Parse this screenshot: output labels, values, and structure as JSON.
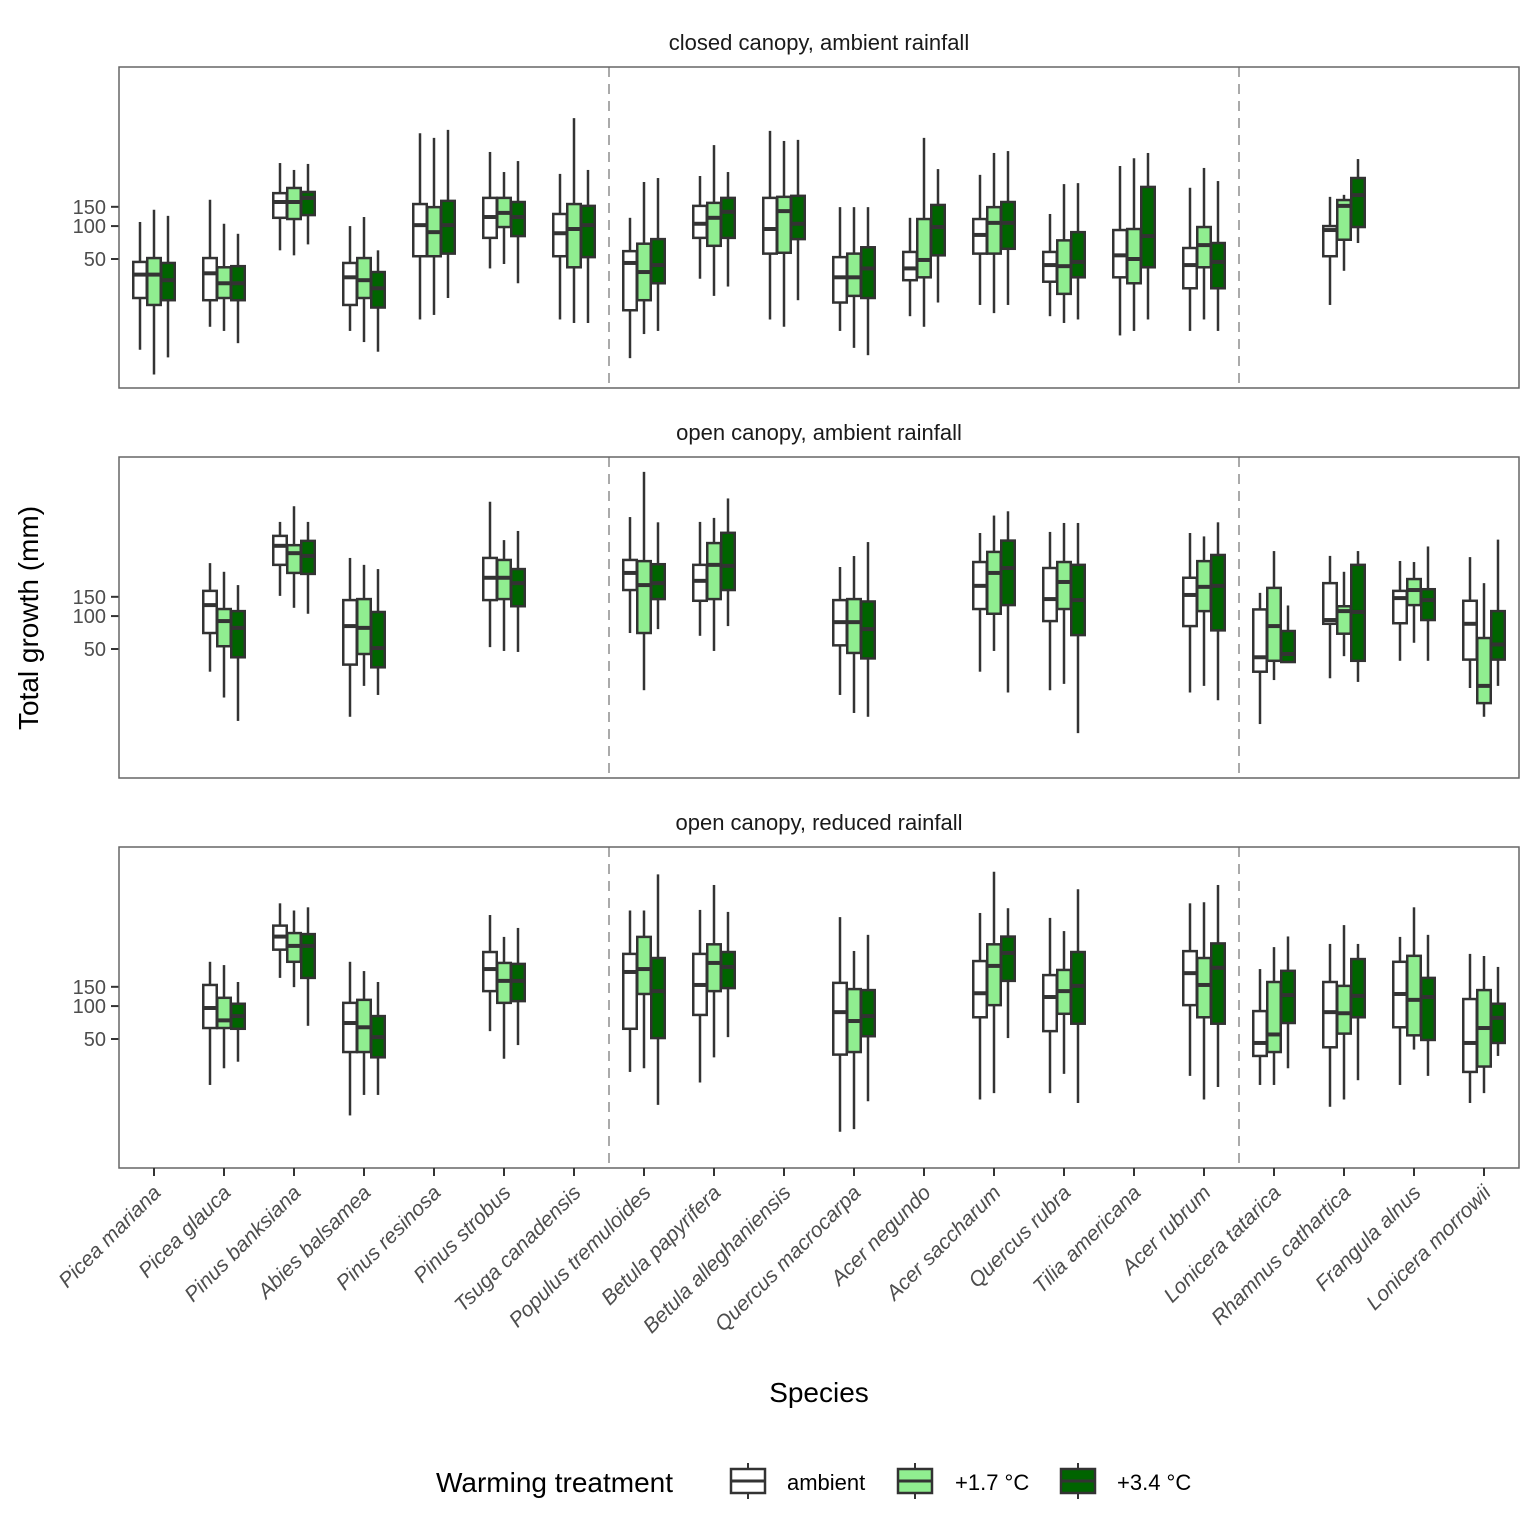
{
  "chart_data": {
    "type": "boxplot",
    "ylabel": "Total growth (mm)",
    "xlabel": "Species",
    "y_scale": "log",
    "ylim": [
      3.3,
      2850
    ],
    "y_ticks": [
      50,
      100,
      150
    ],
    "y_tick_labels": [
      "50",
      "100",
      "150"
    ],
    "group_separators_after": [
      "Tsuga canadensis",
      "Acer rubrum"
    ],
    "categories": [
      "Picea mariana",
      "Picea glauca",
      "Pinus banksiana",
      "Abies balsamea",
      "Pinus resinosa",
      "Pinus strobus",
      "Tsuga canadensis",
      "Populus tremuloides",
      "Betula papyrifera",
      "Betula alleghaniensis",
      "Quercus macrocarpa",
      "Acer negundo",
      "Acer saccharum",
      "Quercus rubra",
      "Tilia americana",
      "Acer rubrum",
      "Lonicera tatarica",
      "Rhamnus cathartica",
      "Frangula alnus",
      "Lonicera morrowii"
    ],
    "legend": {
      "title": "Warming treatment",
      "position": "bottom",
      "entries": [
        {
          "name": "ambient",
          "color": "#ffffff"
        },
        {
          "name": "+1.7 °C",
          "color": "#90ee90"
        },
        {
          "name": "+3.4 °C",
          "color": "#006400"
        }
      ]
    },
    "box_stat_order": [
      "whisker_low",
      "q1",
      "median",
      "q3",
      "whisker_high"
    ],
    "panels": [
      {
        "title": "closed canopy, ambient rainfall",
        "boxes": {
          "Picea mariana": [
            [
              7.4,
              22,
              36,
              47,
              109
            ],
            [
              4.4,
              19,
              36,
              51,
              141
            ],
            [
              6.3,
              21,
              32,
              46,
              124
            ]
          ],
          "Picea glauca": [
            [
              12,
              21,
              37,
              51,
              174
            ],
            [
              11,
              22,
              30,
              42,
              105
            ],
            [
              8.5,
              21,
              30,
              43,
              85
            ]
          ],
          "Pinus banksiana": [
            [
              60,
              119,
              166,
              200,
              377
            ],
            [
              54,
              116,
              166,
              223,
              326
            ],
            [
              68,
              126,
              181,
              205,
              370
            ]
          ],
          "Abies balsamea": [
            [
              11,
              19,
              34,
              46,
              100
            ],
            [
              8.7,
              22,
              32,
              51,
              121
            ],
            [
              7.1,
              18,
              27,
              38,
              60
            ]
          ],
          "Pinus resinosa": [
            [
              14,
              53,
              102,
              159,
              705
            ],
            [
              15.4,
              53,
              88,
              149,
              640
            ],
            [
              22,
              56,
              102,
              170,
              757
            ]
          ],
          "Pinus strobus": [
            [
              41,
              78,
              121,
              181,
              476
            ],
            [
              45,
              98,
              132,
              181,
              312
            ],
            [
              30,
              81,
              121,
              166,
              393
            ]
          ],
          "Tsuga canadensis": [
            [
              14,
              53,
              86,
              129,
              300
            ],
            [
              13,
              42,
              94,
              159,
              970
            ],
            [
              13,
              52,
              102,
              153,
              326
            ]
          ],
          "Populus tremuloides": [
            [
              6.2,
              17,
              46,
              59,
              119
            ],
            [
              10.3,
              21,
              38,
              69,
              253
            ],
            [
              11,
              30,
              44,
              76,
              275
            ]
          ],
          "Betula papyrifera": [
            [
              33,
              78,
              105,
              153,
              287
            ],
            [
              23,
              66,
              119,
              163,
              550
            ],
            [
              28,
              78,
              135,
              181,
              312
            ]
          ],
          "Betula alleghaniensis": [
            [
              14,
              56,
              94,
              181,
              742
            ],
            [
              12,
              57,
              137,
              185,
              600
            ],
            [
              21,
              76,
              105,
              189,
              614
            ]
          ],
          "Quercus macrocarpa": [
            [
              11,
              20,
              34,
              52,
              149
            ],
            [
              7.7,
              23,
              34,
              56,
              149
            ],
            [
              6.6,
              22,
              41,
              64,
              149
            ]
          ],
          "Acer negundo": [
            [
              15,
              32,
              41,
              58,
              119
            ],
            [
              12,
              34,
              49,
              116,
              640
            ],
            [
              20,
              54,
              98,
              156,
              332
            ]
          ],
          "Acer saccharum": [
            [
              19,
              56,
              83,
              116,
              294
            ],
            [
              16,
              56,
              107,
              149,
              466
            ],
            [
              19,
              62,
              107,
              166,
              485
            ]
          ],
          "Quercus rubra": [
            [
              15,
              31,
              44,
              58,
              129
            ],
            [
              13,
              24,
              43,
              74,
              242
            ],
            [
              14,
              34,
              47,
              88,
              247
            ]
          ],
          "Tilia americana": [
            [
              10,
              34,
              54,
              92,
              354
            ],
            [
              11,
              30,
              50,
              94,
              417
            ],
            [
              14,
              42,
              81,
              228,
              466
            ]
          ],
          "Acer rubrum": [
            [
              11,
              27,
              44,
              63,
              224
            ],
            [
              14,
              42,
              67,
              98,
              340
            ],
            [
              11,
              27,
              47,
              70,
              258
            ]
          ],
          "Rhamnus cathartica": [
            [
              19,
              53,
              92,
              100,
              185
            ],
            [
              39,
              75,
              153,
              173,
              193
            ],
            [
              70,
              98,
              192,
              275,
              410
            ]
          ]
        }
      },
      {
        "title": "open canopy, ambient rainfall",
        "boxes": {
          "Picea glauca": [
            [
              31,
              70,
              126,
              170,
              305
            ],
            [
              18,
              53,
              90,
              116,
              254
            ],
            [
              11,
              42,
              78,
              111,
              192
            ]
          ],
          "Pinus banksiana": [
            [
              153,
              294,
              439,
              541,
              726
            ],
            [
              119,
              248,
              376,
              445,
              1010
            ],
            [
              105,
              243,
              355,
              487,
              726
            ]
          ],
          "Abies balsamea": [
            [
              12,
              36,
              81,
              140,
              340
            ],
            [
              23,
              45,
              78,
              143,
              294
            ],
            [
              19,
              34,
              51,
              109,
              269
            ]
          ],
          "Pinus strobus": [
            [
              52,
              140,
              224,
              340,
              1110
            ],
            [
              48,
              143,
              224,
              326,
              495
            ],
            [
              47,
              123,
              200,
              269,
              600
            ]
          ],
          "Populus tremuloides": [
            [
              70,
              173,
              248,
              326,
              804
            ],
            [
              21,
              70,
              192,
              318,
              2080
            ],
            [
              76,
              143,
              200,
              298,
              720
            ]
          ],
          "Betula papyrifera": [
            [
              66,
              138,
              210,
              294,
              726
            ],
            [
              48,
              143,
              294,
              465,
              790
            ],
            [
              81,
              173,
              288,
              577,
              1190
            ]
          ],
          "Quercus macrocarpa": [
            [
              19,
              54,
              88,
              140,
              281
            ],
            [
              13,
              46,
              88,
              143,
              354
            ],
            [
              12,
              41,
              76,
              136,
              475
            ]
          ],
          "Acer saccharum": [
            [
              31,
              116,
              189,
              312,
              575
            ],
            [
              48,
              105,
              248,
              386,
              830
            ],
            [
              20,
              126,
              275,
              490,
              908
            ]
          ],
          "Quercus rubra": [
            [
              21,
              90,
              143,
              275,
              588
            ],
            [
              24,
              116,
              205,
              312,
              710
            ],
            [
              8.5,
              67,
              140,
              294,
              710
            ]
          ],
          "Acer rubrum": [
            [
              20,
              81,
              156,
              224,
              575
            ],
            [
              23,
              111,
              185,
              318,
              535
            ],
            [
              17,
              74,
              189,
              362,
              720
            ]
          ],
          "Lonicera tatarica": [
            [
              10.3,
              31,
              42,
              115,
              163
            ],
            [
              26,
              39,
              81,
              181,
              393
            ],
            [
              38,
              38,
              45,
              73,
              125
            ]
          ],
          "Rhamnus cathartica": [
            [
              27,
              85,
              92,
              200,
              355
            ],
            [
              43,
              69,
              111,
              123,
              254
            ],
            [
              25,
              39,
              109,
              294,
              393
            ]
          ],
          "Frangula alnus": [
            [
              39,
              86,
              146,
              170,
              319
            ],
            [
              57,
              126,
              173,
              218,
              312
            ],
            [
              39,
              92,
              140,
              176,
              433
            ]
          ],
          "Lonicera morrowii": [
            [
              22,
              40,
              85,
              138,
              346
            ],
            [
              12,
              16,
              23,
              63,
              200
            ],
            [
              23,
              40,
              55,
              111,
              500
            ]
          ]
        }
      },
      {
        "title": "open canopy, reduced rainfall",
        "boxes": {
          "Picea glauca": [
            [
              19,
              63,
              96,
              156,
              254
            ],
            [
              27,
              63,
              74,
              119,
              237
            ],
            [
              31,
              62,
              81,
              105,
              166
            ]
          ],
          "Pinus banksiana": [
            [
              181,
              328,
              432,
              544,
              870
            ],
            [
              149,
              254,
              355,
              465,
              748
            ],
            [
              66,
              181,
              355,
              455,
              800
            ]
          ],
          "Abies balsamea": [
            [
              10,
              38,
              70,
              107,
              254
            ],
            [
              15.4,
              38,
              64,
              114,
              209
            ],
            [
              15.4,
              34,
              52,
              81,
              166
            ]
          ],
          "Pinus strobus": [
            [
              59,
              137,
              218,
              312,
              680
            ],
            [
              33,
              107,
              170,
              248,
              429
            ],
            [
              44,
              111,
              170,
              243,
              518
            ]
          ],
          "Populus tremuloides": [
            [
              25,
              62,
              205,
              300,
              748
            ],
            [
              27,
              129,
              218,
              429,
              748
            ],
            [
              12.5,
              51,
              137,
              275,
              1600
            ]
          ],
          "Betula papyrifera": [
            [
              20,
              83,
              156,
              300,
              757
            ],
            [
              34,
              137,
              248,
              367,
              1280
            ],
            [
              52,
              146,
              228,
              312,
              726
            ]
          ],
          "Quercus macrocarpa": [
            [
              7.1,
              36,
              88,
              163,
              651
            ],
            [
              7.5,
              38,
              73,
              143,
              319
            ],
            [
              13.5,
              53,
              81,
              140,
              448
            ]
          ],
          "Acer saccharum": [
            [
              14,
              79,
              131,
              258,
              710
            ],
            [
              16,
              102,
              233,
              367,
              1690
            ],
            [
              51,
              170,
              306,
              432,
              785
            ]
          ],
          "Quercus rubra": [
            [
              16,
              59,
              121,
              192,
              640
            ],
            [
              24,
              85,
              137,
              214,
              485
            ],
            [
              13,
              69,
              153,
              312,
              1170
            ]
          ],
          "Acer rubrum": [
            [
              23,
              102,
              200,
              318,
              870
            ],
            [
              14,
              79,
              156,
              275,
              890
            ],
            [
              18.2,
              69,
              224,
              374,
              1280
            ]
          ],
          "Lonicera tatarica": [
            [
              19,
              35,
              46,
              90,
              218
            ],
            [
              19,
              38,
              55,
              166,
              346
            ],
            [
              27,
              70,
              126,
              210,
              433
            ]
          ],
          "Rhamnus cathartica": [
            [
              12,
              42,
              88,
              166,
              370
            ],
            [
              14,
              56,
              86,
              153,
              550
            ],
            [
              21,
              79,
              124,
              269,
              370
            ]
          ],
          "Frangula alnus": [
            [
              19,
              64,
              129,
              254,
              429
            ],
            [
              40,
              54,
              114,
              288,
              800
            ],
            [
              23,
              49,
              121,
              181,
              448
            ]
          ],
          "Lonicera morrowii": [
            [
              13,
              25,
              46,
              116,
              300
            ],
            [
              16,
              28,
              63,
              140,
              287
            ],
            [
              35,
              46,
              78,
              105,
              228
            ]
          ]
        }
      }
    ]
  }
}
